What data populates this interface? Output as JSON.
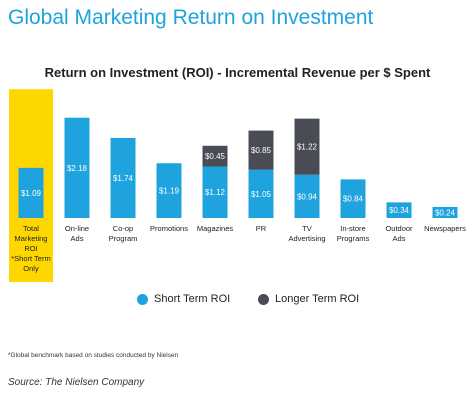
{
  "header": {
    "title": "Global Marketing Return on Investment"
  },
  "colors": {
    "title": "#1fa3de",
    "short_term": "#1fa3de",
    "longer_term": "#4a4c55",
    "highlight": "#ffd700"
  },
  "chart_data": {
    "type": "bar",
    "stacked": true,
    "title": "Return on Investment (ROI) - Incremental Revenue per $ Spent",
    "xlabel": "",
    "ylabel": "",
    "grid": false,
    "legend_position": "bottom",
    "highlighted_category": 0,
    "categories": [
      [
        "Total",
        "Marketing",
        "ROI",
        "*Short Term",
        "Only"
      ],
      [
        "On-line",
        "Ads"
      ],
      [
        "Co-op",
        "Program"
      ],
      [
        "Promotions"
      ],
      [
        "Magazines"
      ],
      [
        "PR"
      ],
      [
        "TV",
        "Advertising"
      ],
      [
        "In-store",
        "Programs"
      ],
      [
        "Outdoor",
        "Ads"
      ],
      [
        "Newspapers"
      ]
    ],
    "series": [
      {
        "name": "Short Term ROI",
        "values": [
          1.09,
          2.18,
          1.74,
          1.19,
          1.12,
          1.05,
          0.94,
          0.84,
          0.34,
          0.24
        ],
        "labels": [
          "$1.09",
          "$2.18",
          "$1.74",
          "$1.19",
          "$1.12",
          "$1.05",
          "$0.94",
          "$0.84",
          "$0.34",
          "$0.24"
        ]
      },
      {
        "name": "Longer Term ROI",
        "values": [
          0,
          0,
          0,
          0,
          0.45,
          0.85,
          1.22,
          0,
          0,
          0
        ],
        "labels": [
          "",
          "",
          "",
          "",
          "$0.45",
          "$0.85",
          "$1.22",
          "",
          "",
          ""
        ]
      }
    ]
  },
  "footnote": "*Global benchmark based on studies conducted by Nielsen",
  "source": "Source: The Nielsen Company"
}
